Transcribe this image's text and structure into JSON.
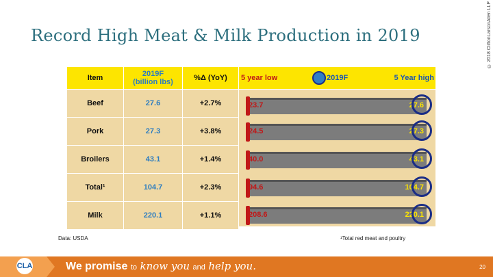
{
  "title": "Record High Meat & Milk Production in 2019",
  "copyright": "© 2018 CliftonLarsonAllen LLP",
  "table": {
    "headers": [
      "Item",
      "2019F\n(billion lbs)",
      "%Δ (YoY)"
    ],
    "rows": [
      {
        "item": "Beef",
        "production": "27.6",
        "change": "+2.7%"
      },
      {
        "item": "Pork",
        "production": "27.3",
        "change": "+3.8%"
      },
      {
        "item": "Broilers",
        "production": "43.1",
        "change": "+1.4%"
      },
      {
        "item": "Total¹",
        "production": "104.7",
        "change": "+2.3%"
      },
      {
        "item": "Milk",
        "production": "220.1",
        "change": "+1.1%"
      }
    ]
  },
  "range_header": {
    "low": "5 year low",
    "mid": "2019F",
    "high": "5 Year high"
  },
  "range_bars": [
    {
      "low": "23.7",
      "high": "27.6"
    },
    {
      "low": "24.5",
      "high": "27.3"
    },
    {
      "low": "40.0",
      "high": "43.1"
    },
    {
      "low": "94.6",
      "high": "104.7"
    },
    {
      "low": "208.6",
      "high": "220.1"
    }
  ],
  "data_source": "Data: USDA",
  "footnote": "¹Total red meat and poultry",
  "footer": {
    "promise_strong": "We promise",
    "to": "to",
    "know_you": "know you",
    "and": "and",
    "help_you": "help you.",
    "page_number": "20",
    "logo_text": "CLA"
  },
  "colors": {
    "header_yellow": "#fde500",
    "row_tan": "#efd8a4",
    "footer_orange": "#e07722",
    "title_teal": "#2d6f7e"
  }
}
